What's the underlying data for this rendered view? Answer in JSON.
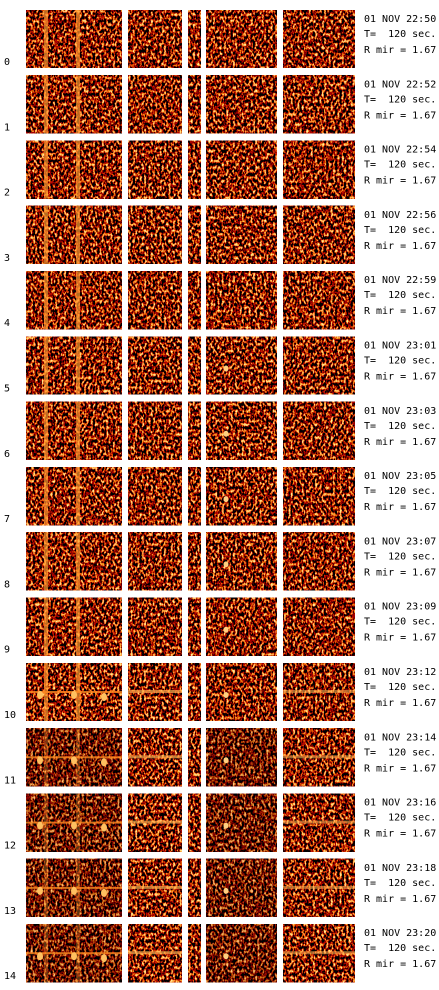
{
  "rows": [
    {
      "index": "0",
      "time": "01 NOV 22:50",
      "exposure": "T=  120 sec.",
      "mirror": "R mir = 1.67"
    },
    {
      "index": "1",
      "time": "01 NOV 22:52",
      "exposure": "T=  120 sec.",
      "mirror": "R mir = 1.67"
    },
    {
      "index": "2",
      "time": "01 NOV 22:54",
      "exposure": "T=  120 sec.",
      "mirror": "R mir = 1.67"
    },
    {
      "index": "3",
      "time": "01 NOV 22:56",
      "exposure": "T=  120 sec.",
      "mirror": "R mir = 1.67"
    },
    {
      "index": "4",
      "time": "01 NOV 22:59",
      "exposure": "T=  120 sec.",
      "mirror": "R mir = 1.67"
    },
    {
      "index": "5",
      "time": "01 NOV 23:01",
      "exposure": "T=  120 sec.",
      "mirror": "R mir = 1.67"
    },
    {
      "index": "6",
      "time": "01 NOV 23:03",
      "exposure": "T=  120 sec.",
      "mirror": "R mir = 1.67"
    },
    {
      "index": "7",
      "time": "01 NOV 23:05",
      "exposure": "T=  120 sec.",
      "mirror": "R mir = 1.67"
    },
    {
      "index": "8",
      "time": "01 NOV 23:07",
      "exposure": "T=  120 sec.",
      "mirror": "R mir = 1.67"
    },
    {
      "index": "9",
      "time": "01 NOV 23:09",
      "exposure": "T=  120 sec.",
      "mirror": "R mir = 1.67"
    },
    {
      "index": "10",
      "time": "01 NOV 23:12",
      "exposure": "T=  120 sec.",
      "mirror": "R mir = 1.67"
    },
    {
      "index": "11",
      "time": "01 NOV 23:14",
      "exposure": "T=  120 sec.",
      "mirror": "R mir = 1.67"
    },
    {
      "index": "12",
      "time": "01 NOV 23:16",
      "exposure": "T=  120 sec.",
      "mirror": "R mir = 1.67"
    },
    {
      "index": "13",
      "time": "01 NOV 23:18",
      "exposure": "T=  120 sec.",
      "mirror": "R mir = 1.67"
    },
    {
      "index": "14",
      "time": "01 NOV 23:20",
      "exposure": "T=  120 sec.",
      "mirror": "R mir = 1.67"
    }
  ]
}
